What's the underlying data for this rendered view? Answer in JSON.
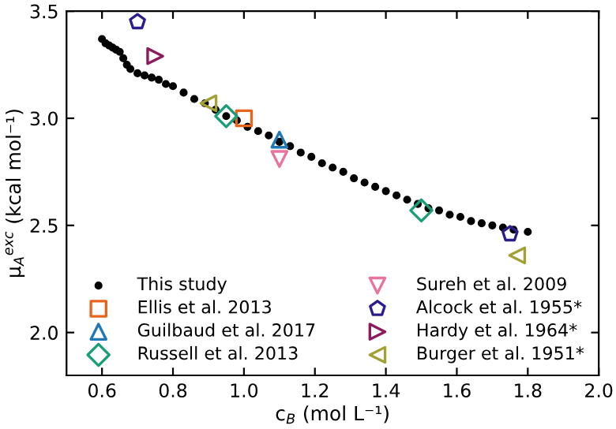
{
  "chart_data": {
    "type": "scatter",
    "xlabel": "c$_{B}$ (mol L⁻¹)",
    "ylabel": "μ$_{A}$$^{exc}$ (kcal mol⁻¹)",
    "xlim": [
      0.5,
      2.0
    ],
    "ylim": [
      1.8,
      3.5
    ],
    "xticks": [
      0.6,
      0.8,
      {
        "value": 1,
        "label": "1.0"
      },
      1.2,
      1.4,
      1.6,
      1.8,
      {
        "value": 2,
        "label": "2.0"
      }
    ],
    "yticks": [
      {
        "value": 2,
        "label": "2.0"
      },
      2.5,
      {
        "value": 3,
        "label": "3.0"
      },
      3.5
    ],
    "grid": false,
    "legend": "bottom",
    "series": [
      {
        "name": "This study",
        "color": "#000000",
        "marker": "circle",
        "x": [
          0.6,
          0.61,
          0.62,
          0.63,
          0.64,
          0.65,
          0.66,
          0.67,
          0.68,
          0.7,
          0.72,
          0.74,
          0.76,
          0.78,
          0.8,
          0.83,
          0.86,
          0.89,
          0.92,
          0.95,
          0.98,
          1.01,
          1.04,
          1.07,
          1.1,
          1.13,
          1.16,
          1.19,
          1.22,
          1.25,
          1.28,
          1.31,
          1.34,
          1.37,
          1.4,
          1.43,
          1.46,
          1.49,
          1.52,
          1.55,
          1.58,
          1.61,
          1.64,
          1.67,
          1.7,
          1.73,
          1.76,
          1.8
        ],
        "values": [
          3.37,
          3.35,
          3.34,
          3.33,
          3.32,
          3.31,
          3.28,
          3.25,
          3.23,
          3.21,
          3.2,
          3.19,
          3.18,
          3.16,
          3.15,
          3.12,
          3.09,
          3.07,
          3.04,
          3.01,
          2.99,
          2.96,
          2.94,
          2.92,
          2.89,
          2.87,
          2.84,
          2.82,
          2.79,
          2.77,
          2.75,
          2.72,
          2.7,
          2.68,
          2.66,
          2.64,
          2.62,
          2.6,
          2.58,
          2.57,
          2.55,
          2.54,
          2.52,
          2.51,
          2.5,
          2.49,
          2.48,
          2.47
        ]
      },
      {
        "name": "Ellis et al. 2013",
        "color": "#e8641b",
        "marker": "square",
        "x": [
          1.0
        ],
        "values": [
          3.0
        ]
      },
      {
        "name": "Guilbaud et al. 2017",
        "color": "#1f78b4",
        "marker": "triangle",
        "x": [
          1.1
        ],
        "values": [
          2.9
        ]
      },
      {
        "name": "Russell et al. 2013",
        "color": "#1a9e77",
        "marker": "diamond",
        "x": [
          0.95,
          1.5
        ],
        "values": [
          3.01,
          2.57
        ]
      },
      {
        "name": "Sureh et al. 2009",
        "color": "#e7749e",
        "x": [
          1.1
        ],
        "values": [
          2.81
        ]
      },
      {
        "name": "Alcock et al. 1955*",
        "color": "#2b1d8c",
        "x": [
          0.7,
          1.75
        ],
        "values": [
          3.45,
          2.46
        ]
      },
      {
        "name": "Hardy et al. 1964*",
        "color": "#8c1a5c",
        "x": [
          0.75
        ],
        "values": [
          3.29
        ]
      },
      {
        "name": "Burger et al. 1951*",
        "color": "#a3a035",
        "x": [
          0.9,
          1.77
        ],
        "values": [
          3.07,
          2.36
        ]
      }
    ]
  }
}
